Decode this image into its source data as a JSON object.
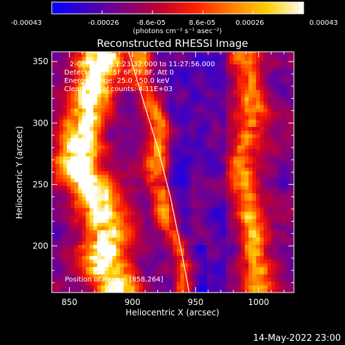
{
  "chart_data": {
    "type": "heatmap",
    "title": "Reconstructed RHESSI Image",
    "xlabel": "Heliocentric X (arcsec)",
    "ylabel": "Heliocentric Y (arcsec)",
    "xlim": [
      836,
      1028
    ],
    "ylim": [
      162,
      358
    ],
    "x_ticks": [
      "850",
      "900",
      "950",
      "1000"
    ],
    "x_tick_values": [
      850,
      900,
      950,
      1000
    ],
    "y_ticks": [
      "200",
      "250",
      "300",
      "350"
    ],
    "y_tick_values": [
      200,
      250,
      300,
      350
    ],
    "colorbar": {
      "min": -0.00043,
      "max": 0.00043,
      "tick_labels": [
        "-0.00043",
        "-0.00026",
        "-8.6e-05",
        "8.6e-05",
        "0.00026",
        "0.00043"
      ],
      "unit_label": "(photons cm⁻² s⁻¹ asec⁻²)",
      "colors": [
        "#0000ff",
        "#4000c0",
        "#800080",
        "#c00030",
        "#ff2000",
        "#ff8000",
        "#ffd000",
        "#ffffff"
      ]
    },
    "annotations": [
      "2-Oct-2012 11:23:32.000 to 11:27:56.000",
      "Detectors: 3F 5F 6F 7F 8F, Att 0",
      "Energy Range: 25.0 - 50.0 keV",
      "Clean    Total counts: 4.11E+03"
    ],
    "peak_label": "Position of Peak = [858,264]",
    "peak": [
      858,
      264
    ],
    "limb_curve": [
      [
        897,
        358
      ],
      [
        908,
        320
      ],
      [
        920,
        280
      ],
      [
        930,
        240
      ],
      [
        938,
        200
      ],
      [
        945,
        162
      ]
    ],
    "bright_ridges": [
      {
        "x": [
          876,
          868,
          858,
          856,
          870,
          880,
          876,
          888
        ],
        "y": [
          352,
          320,
          290,
          265,
          240,
          215,
          190,
          162
        ],
        "width": 24,
        "level": 0.9
      },
      {
        "x": [
          988,
          996,
          986,
          992,
          998,
          1000
        ],
        "y": [
          352,
          310,
          270,
          230,
          195,
          162
        ],
        "width": 16,
        "level": 0.55
      },
      {
        "x": [
          906,
          922,
          918,
          928,
          942
        ],
        "y": [
          335,
          300,
          262,
          222,
          185
        ],
        "width": 12,
        "level": 0.5
      }
    ]
  },
  "footer": {
    "timestamp": "14-May-2022 23:00"
  }
}
